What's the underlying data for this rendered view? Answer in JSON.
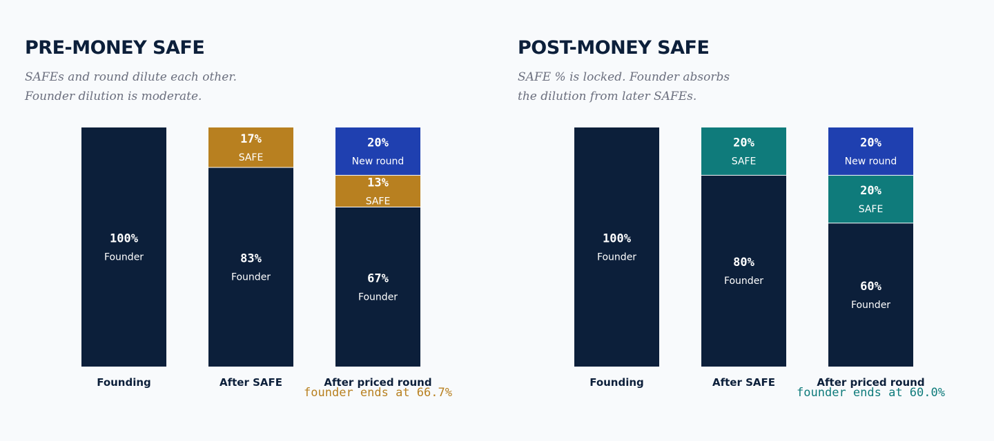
{
  "colors": {
    "founder": "#0c1f3a",
    "safe_pre": "#b88020",
    "safe_post": "#0f7b7b",
    "new_round": "#1f40b0",
    "title": "#0c1f3a",
    "subtitle": "#6b6f7e",
    "background": "#f8fafc"
  },
  "panels": [
    {
      "title": "PRE-MONEY SAFE",
      "subtitle": [
        "SAFEs and round dilute each other.",
        "Founder dilution is moderate."
      ]
    },
    {
      "title": "POST-MONEY SAFE",
      "subtitle": [
        "SAFE % is locked. Founder absorbs",
        "the dilution from later SAFEs."
      ]
    }
  ],
  "chart_data": [
    {
      "type": "bar",
      "stacked": true,
      "title": "PRE-MONEY SAFE",
      "categories": [
        "Founding",
        "After SAFE",
        "After priced round"
      ],
      "ylim": [
        0,
        100
      ],
      "stacks": [
        [
          {
            "label": "Founder",
            "value_label": "100%",
            "value": 100,
            "color": "founder"
          }
        ],
        [
          {
            "label": "Founder",
            "value_label": "83%",
            "value": 83.3,
            "color": "founder"
          },
          {
            "label": "SAFE",
            "value_label": "17%",
            "value": 16.7,
            "color": "safe_pre"
          }
        ],
        [
          {
            "label": "Founder",
            "value_label": "67%",
            "value": 66.7,
            "color": "founder"
          },
          {
            "label": "SAFE",
            "value_label": "13%",
            "value": 13.3,
            "color": "safe_pre"
          },
          {
            "label": "New round",
            "value_label": "20%",
            "value": 20,
            "color": "new_round"
          }
        ]
      ],
      "annotation": {
        "text": "founder ends at 66.7%",
        "color": "safe_pre",
        "category_index": 2
      }
    },
    {
      "type": "bar",
      "stacked": true,
      "title": "POST-MONEY SAFE",
      "categories": [
        "Founding",
        "After SAFE",
        "After priced round"
      ],
      "ylim": [
        0,
        100
      ],
      "stacks": [
        [
          {
            "label": "Founder",
            "value_label": "100%",
            "value": 100,
            "color": "founder"
          }
        ],
        [
          {
            "label": "Founder",
            "value_label": "80%",
            "value": 80,
            "color": "founder"
          },
          {
            "label": "SAFE",
            "value_label": "20%",
            "value": 20,
            "color": "safe_post"
          }
        ],
        [
          {
            "label": "Founder",
            "value_label": "60%",
            "value": 60,
            "color": "founder"
          },
          {
            "label": "SAFE",
            "value_label": "20%",
            "value": 20,
            "color": "safe_post"
          },
          {
            "label": "New round",
            "value_label": "20%",
            "value": 20,
            "color": "new_round"
          }
        ]
      ],
      "annotation": {
        "text": "founder ends at 60.0%",
        "color": "safe_post",
        "category_index": 2
      }
    }
  ]
}
